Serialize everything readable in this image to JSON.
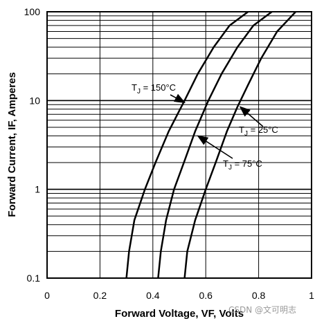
{
  "chart_data": {
    "type": "line",
    "xlabel": "Forward Voltage, VF, Volts",
    "ylabel": "Forward Current, IF, Amperes",
    "xlim": [
      0,
      1.0
    ],
    "ylim": [
      0.1,
      100
    ],
    "yscale": "log",
    "grid": true,
    "x_ticks": [
      "0",
      "0.2",
      "0.4",
      "0.6",
      "0.8",
      "1"
    ],
    "y_ticks": [
      "0.1",
      "1",
      "10",
      "100"
    ],
    "series": [
      {
        "name": "150°C",
        "x": [
          0.3,
          0.31,
          0.33,
          0.37,
          0.41,
          0.46,
          0.52,
          0.57,
          0.63,
          0.69,
          0.76
        ],
        "y": [
          0.1,
          0.2,
          0.45,
          1.0,
          2.0,
          4.5,
          10,
          20,
          40,
          70,
          100
        ]
      },
      {
        "name": "75°C",
        "x": [
          0.42,
          0.43,
          0.45,
          0.48,
          0.52,
          0.56,
          0.61,
          0.66,
          0.72,
          0.78,
          0.85
        ],
        "y": [
          0.1,
          0.2,
          0.45,
          1.0,
          2.1,
          4.5,
          10,
          20,
          40,
          70,
          100
        ]
      },
      {
        "name": "25°C",
        "x": [
          0.52,
          0.53,
          0.56,
          0.6,
          0.64,
          0.68,
          0.72,
          0.76,
          0.81,
          0.87,
          0.94
        ],
        "y": [
          0.1,
          0.2,
          0.45,
          1.0,
          2.1,
          4.5,
          8.5,
          15,
          30,
          60,
          100
        ]
      }
    ],
    "annotations": [
      {
        "prefix": "T",
        "subscript": "J",
        "value": " = 150°C",
        "target_x": 0.52,
        "target_y": 9.5
      },
      {
        "prefix": "T",
        "subscript": "J",
        "value": " = 25°C",
        "target_x": 0.73,
        "target_y": 8.5
      },
      {
        "prefix": "T",
        "subscript": "J",
        "value": " = 75°C",
        "target_x": 0.57,
        "target_y": 4.0
      }
    ]
  },
  "watermark": "CSDN @文可明志"
}
